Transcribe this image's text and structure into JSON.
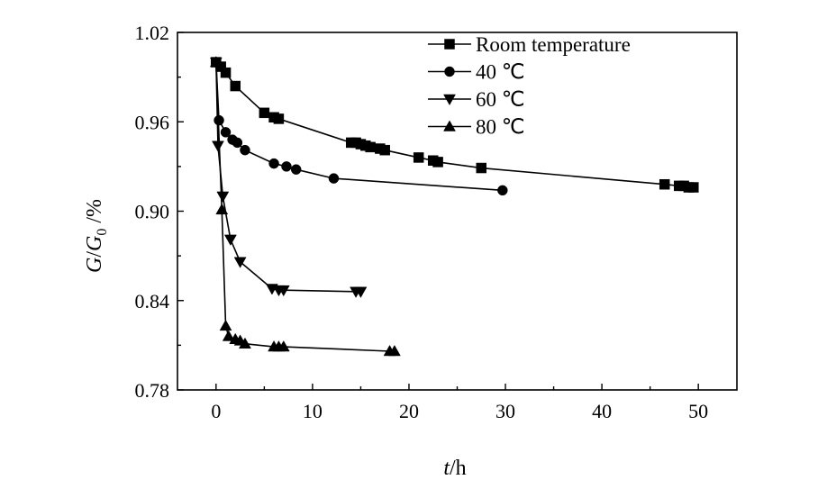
{
  "chart_data": {
    "type": "line",
    "title": "",
    "xlabel_italic": "t",
    "xlabel_rest": "/h",
    "ylabel_g": "G",
    "ylabel_slash": "/",
    "ylabel_g0": "G",
    "ylabel_sub": "0",
    "ylabel_unit": " /%",
    "xlim": [
      -4,
      54
    ],
    "ylim": [
      0.78,
      1.02
    ],
    "xticks": [
      0,
      10,
      20,
      30,
      40,
      50
    ],
    "xtick_labels": [
      "0",
      "10",
      "20",
      "30",
      "40",
      "50"
    ],
    "yticks": [
      0.78,
      0.84,
      0.9,
      0.96,
      1.02
    ],
    "ytick_labels": [
      "0.78",
      "0.84",
      "0.90",
      "0.96",
      "1.02"
    ],
    "grid": false,
    "legend_position": "top-right",
    "series": [
      {
        "name": "Room temperature",
        "marker": "square",
        "x": [
          0,
          0.5,
          1,
          2,
          5,
          6,
          6.5,
          14,
          14.5,
          15,
          15.5,
          16,
          17,
          17.5,
          21,
          22.5,
          23,
          27.5,
          46.5,
          48,
          48.5,
          49,
          49.5
        ],
        "y": [
          1.0,
          0.997,
          0.993,
          0.984,
          0.966,
          0.963,
          0.962,
          0.946,
          0.946,
          0.945,
          0.944,
          0.943,
          0.942,
          0.941,
          0.936,
          0.934,
          0.933,
          0.929,
          0.918,
          0.917,
          0.917,
          0.916,
          0.916
        ]
      },
      {
        "name": "40 ℃",
        "marker": "circle",
        "x": [
          0,
          0.3,
          1,
          1.7,
          2.2,
          3,
          6,
          7.3,
          8.3,
          12.2,
          29.7
        ],
        "y": [
          1.0,
          0.961,
          0.953,
          0.948,
          0.946,
          0.941,
          0.932,
          0.93,
          0.928,
          0.922,
          0.914
        ]
      },
      {
        "name": "60 ℃",
        "marker": "triangle-down",
        "x": [
          0,
          0.2,
          0.7,
          1.5,
          2.5,
          5.8,
          6.5,
          7,
          14.5,
          15
        ],
        "y": [
          1.0,
          0.944,
          0.91,
          0.881,
          0.866,
          0.848,
          0.847,
          0.847,
          0.846,
          0.846
        ]
      },
      {
        "name": "80 ℃",
        "marker": "triangle-up",
        "x": [
          0,
          0.6,
          1,
          1.3,
          2,
          2.5,
          3,
          6,
          6.5,
          7,
          18,
          18.5
        ],
        "y": [
          1.0,
          0.901,
          0.823,
          0.816,
          0.814,
          0.813,
          0.811,
          0.809,
          0.809,
          0.809,
          0.806,
          0.806
        ]
      }
    ]
  }
}
